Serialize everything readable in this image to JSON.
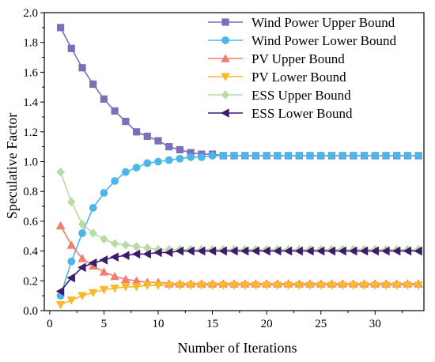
{
  "chart_data": {
    "type": "line",
    "title": "",
    "xlabel": "Number of Iterations",
    "ylabel": "Speculative Factor",
    "xlim": [
      -0.5,
      34.5
    ],
    "ylim": [
      0,
      2.0
    ],
    "xticks": [
      "0",
      "5",
      "10",
      "15",
      "20",
      "25",
      "30"
    ],
    "yticks": [
      "0.0",
      "0.2",
      "0.4",
      "0.6",
      "0.8",
      "1.0",
      "1.2",
      "1.4",
      "1.6",
      "1.8",
      "2.0"
    ],
    "grid": false,
    "legend_position": "top-right",
    "x": [
      1,
      2,
      3,
      4,
      5,
      6,
      7,
      8,
      9,
      10,
      11,
      12,
      13,
      14,
      15,
      16,
      17,
      18,
      19,
      20,
      21,
      22,
      23,
      24,
      25,
      26,
      27,
      28,
      29,
      30,
      31,
      32,
      33,
      34
    ],
    "series": [
      {
        "name": "Wind Power Upper Bound",
        "color": "#7b6fb8",
        "marker": "square",
        "values": [
          1.9,
          1.76,
          1.63,
          1.52,
          1.42,
          1.34,
          1.27,
          1.2,
          1.17,
          1.14,
          1.1,
          1.08,
          1.06,
          1.05,
          1.05,
          1.04,
          1.04,
          1.04,
          1.04,
          1.04,
          1.04,
          1.04,
          1.04,
          1.04,
          1.04,
          1.04,
          1.04,
          1.04,
          1.04,
          1.04,
          1.04,
          1.04,
          1.04,
          1.04
        ]
      },
      {
        "name": "Wind Power Lower Bound",
        "color": "#4db6e8",
        "marker": "circle",
        "values": [
          0.1,
          0.33,
          0.52,
          0.69,
          0.79,
          0.87,
          0.93,
          0.96,
          0.99,
          1.0,
          1.01,
          1.02,
          1.03,
          1.03,
          1.04,
          1.04,
          1.04,
          1.04,
          1.04,
          1.04,
          1.04,
          1.04,
          1.04,
          1.04,
          1.04,
          1.04,
          1.04,
          1.04,
          1.04,
          1.04,
          1.04,
          1.04,
          1.04,
          1.04
        ]
      },
      {
        "name": "PV Upper Bound",
        "color": "#f07f6f",
        "marker": "triangle-up",
        "values": [
          0.57,
          0.44,
          0.35,
          0.3,
          0.26,
          0.23,
          0.21,
          0.2,
          0.19,
          0.19,
          0.18,
          0.18,
          0.18,
          0.18,
          0.18,
          0.18,
          0.18,
          0.18,
          0.18,
          0.18,
          0.18,
          0.18,
          0.18,
          0.18,
          0.18,
          0.18,
          0.18,
          0.18,
          0.18,
          0.18,
          0.18,
          0.18,
          0.18,
          0.18
        ]
      },
      {
        "name": "PV Lower Bound",
        "color": "#f9b92d",
        "marker": "triangle-down",
        "values": [
          0.04,
          0.07,
          0.1,
          0.12,
          0.14,
          0.15,
          0.16,
          0.16,
          0.17,
          0.17,
          0.17,
          0.17,
          0.17,
          0.17,
          0.17,
          0.17,
          0.17,
          0.17,
          0.17,
          0.17,
          0.17,
          0.17,
          0.17,
          0.17,
          0.17,
          0.17,
          0.17,
          0.17,
          0.17,
          0.17,
          0.17,
          0.17,
          0.17,
          0.17
        ]
      },
      {
        "name": "ESS Upper Bound",
        "color": "#b7dba0",
        "marker": "diamond",
        "values": [
          0.93,
          0.73,
          0.58,
          0.52,
          0.48,
          0.45,
          0.44,
          0.43,
          0.42,
          0.41,
          0.41,
          0.41,
          0.41,
          0.41,
          0.41,
          0.41,
          0.41,
          0.41,
          0.41,
          0.41,
          0.41,
          0.41,
          0.41,
          0.41,
          0.41,
          0.41,
          0.41,
          0.41,
          0.41,
          0.41,
          0.41,
          0.41,
          0.41,
          0.41
        ]
      },
      {
        "name": "ESS Lower Bound",
        "color": "#3d1a6e",
        "marker": "triangle-left",
        "values": [
          0.13,
          0.22,
          0.29,
          0.32,
          0.34,
          0.36,
          0.37,
          0.38,
          0.38,
          0.39,
          0.39,
          0.4,
          0.4,
          0.4,
          0.4,
          0.4,
          0.4,
          0.4,
          0.4,
          0.4,
          0.4,
          0.4,
          0.4,
          0.4,
          0.4,
          0.4,
          0.4,
          0.4,
          0.4,
          0.4,
          0.4,
          0.4,
          0.4,
          0.4
        ]
      }
    ]
  }
}
